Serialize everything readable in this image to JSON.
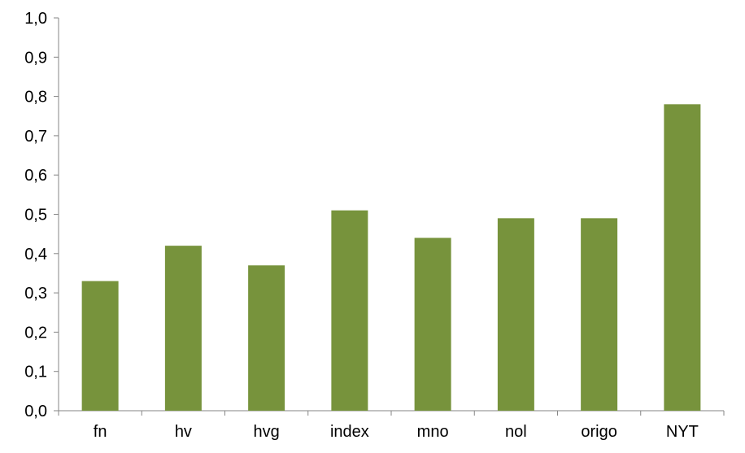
{
  "chart_data": {
    "type": "bar",
    "categories": [
      "fn",
      "hv",
      "hvg",
      "index",
      "mno",
      "nol",
      "origo",
      "NYT"
    ],
    "values": [
      0.33,
      0.42,
      0.37,
      0.51,
      0.44,
      0.49,
      0.49,
      0.78
    ],
    "ylim": [
      0,
      1.0
    ],
    "y_ticks": [
      "0,0",
      "0,1",
      "0,2",
      "0,3",
      "0,4",
      "0,5",
      "0,6",
      "0,7",
      "0,8",
      "0,9",
      "1,0"
    ],
    "grid": false,
    "legend": "none",
    "title": "",
    "xlabel": "",
    "ylabel": "",
    "bar_color": "#77933c",
    "axis_color": "#868686"
  }
}
